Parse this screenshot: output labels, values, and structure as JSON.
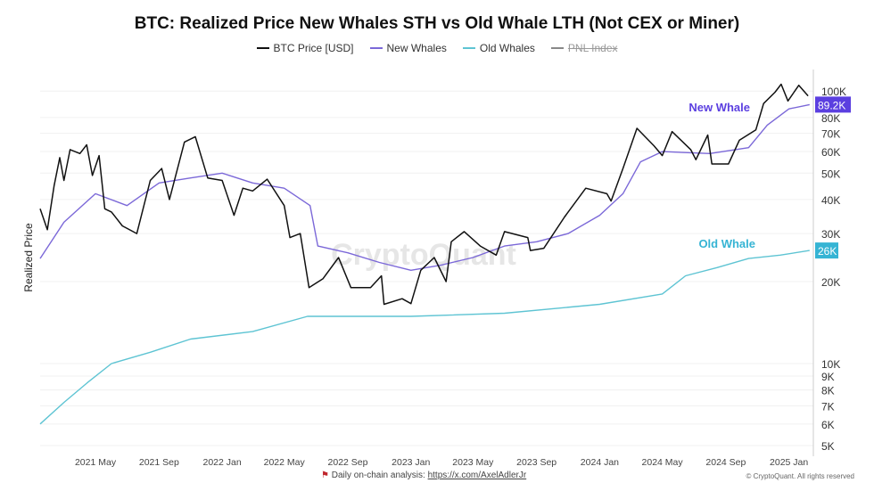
{
  "chart_data": {
    "type": "line",
    "title": "BTC: Realized Price New Whales STH vs Old Whale LTH (Not CEX or Miner)",
    "ylabel": "Realized Price",
    "yscale": "log",
    "ylim": [
      4570,
      120000
    ],
    "xlim": [
      "2021-01-14",
      "2025-02-12"
    ],
    "grid": "horizontal",
    "legend_position": "top",
    "yticks": [
      {
        "v": 100000,
        "l": "100K"
      },
      {
        "v": 80000,
        "l": "80K"
      },
      {
        "v": 70000,
        "l": "70K"
      },
      {
        "v": 60000,
        "l": "60K"
      },
      {
        "v": 50000,
        "l": "50K"
      },
      {
        "v": 40000,
        "l": "40K"
      },
      {
        "v": 30000,
        "l": "30K"
      },
      {
        "v": 20000,
        "l": "20K"
      },
      {
        "v": 10000,
        "l": "10K"
      },
      {
        "v": 9000,
        "l": "9K"
      },
      {
        "v": 8000,
        "l": "8K"
      },
      {
        "v": 7000,
        "l": "7K"
      },
      {
        "v": 6000,
        "l": "6K"
      },
      {
        "v": 5000,
        "l": "5K"
      }
    ],
    "xticks": [
      {
        "d": "2021-05-01",
        "l": "2021 May"
      },
      {
        "d": "2021-09-01",
        "l": "2021 Sep"
      },
      {
        "d": "2022-01-01",
        "l": "2022 Jan"
      },
      {
        "d": "2022-05-01",
        "l": "2022 May"
      },
      {
        "d": "2022-09-01",
        "l": "2022 Sep"
      },
      {
        "d": "2023-01-01",
        "l": "2023 Jan"
      },
      {
        "d": "2023-05-01",
        "l": "2023 May"
      },
      {
        "d": "2023-09-01",
        "l": "2023 Sep"
      },
      {
        "d": "2024-01-01",
        "l": "2024 Jan"
      },
      {
        "d": "2024-05-01",
        "l": "2024 May"
      },
      {
        "d": "2024-09-01",
        "l": "2024 Sep"
      },
      {
        "d": "2025-01-01",
        "l": "2025 Jan"
      }
    ],
    "series": [
      {
        "name": "BTC Price [USD]",
        "color": "#111111",
        "points": [
          [
            "2021-01-14",
            37000
          ],
          [
            "2021-01-28",
            31000
          ],
          [
            "2021-02-10",
            45000
          ],
          [
            "2021-02-21",
            57000
          ],
          [
            "2021-03-01",
            47000
          ],
          [
            "2021-03-13",
            61000
          ],
          [
            "2021-04-01",
            59000
          ],
          [
            "2021-04-14",
            63500
          ],
          [
            "2021-04-25",
            49000
          ],
          [
            "2021-05-08",
            58000
          ],
          [
            "2021-05-19",
            37000
          ],
          [
            "2021-06-01",
            36000
          ],
          [
            "2021-06-22",
            32000
          ],
          [
            "2021-07-20",
            30000
          ],
          [
            "2021-08-15",
            47000
          ],
          [
            "2021-09-06",
            52000
          ],
          [
            "2021-09-21",
            40000
          ],
          [
            "2021-10-20",
            65000
          ],
          [
            "2021-11-10",
            68000
          ],
          [
            "2021-12-04",
            48000
          ],
          [
            "2022-01-01",
            47000
          ],
          [
            "2022-01-24",
            35000
          ],
          [
            "2022-02-10",
            44000
          ],
          [
            "2022-03-01",
            43000
          ],
          [
            "2022-03-29",
            47500
          ],
          [
            "2022-05-01",
            38000
          ],
          [
            "2022-05-12",
            29000
          ],
          [
            "2022-06-01",
            30000
          ],
          [
            "2022-06-18",
            19000
          ],
          [
            "2022-07-15",
            20500
          ],
          [
            "2022-08-14",
            24500
          ],
          [
            "2022-09-07",
            19000
          ],
          [
            "2022-10-15",
            19000
          ],
          [
            "2022-11-05",
            21000
          ],
          [
            "2022-11-10",
            16500
          ],
          [
            "2022-12-15",
            17300
          ],
          [
            "2023-01-01",
            16600
          ],
          [
            "2023-01-20",
            22000
          ],
          [
            "2023-02-15",
            24500
          ],
          [
            "2023-03-10",
            20000
          ],
          [
            "2023-03-20",
            28000
          ],
          [
            "2023-04-14",
            30500
          ],
          [
            "2023-05-15",
            27000
          ],
          [
            "2023-06-15",
            25000
          ],
          [
            "2023-07-01",
            30500
          ],
          [
            "2023-08-15",
            29000
          ],
          [
            "2023-08-20",
            26000
          ],
          [
            "2023-09-15",
            26500
          ],
          [
            "2023-10-25",
            34500
          ],
          [
            "2023-12-05",
            44000
          ],
          [
            "2024-01-15",
            42000
          ],
          [
            "2024-01-23",
            39500
          ],
          [
            "2024-02-15",
            52000
          ],
          [
            "2024-03-13",
            73000
          ],
          [
            "2024-04-15",
            63000
          ],
          [
            "2024-05-01",
            58000
          ],
          [
            "2024-05-20",
            71000
          ],
          [
            "2024-06-25",
            61000
          ],
          [
            "2024-07-05",
            56000
          ],
          [
            "2024-07-28",
            69000
          ],
          [
            "2024-08-05",
            54000
          ],
          [
            "2024-09-06",
            54000
          ],
          [
            "2024-09-27",
            66000
          ],
          [
            "2024-10-29",
            72000
          ],
          [
            "2024-11-13",
            90000
          ],
          [
            "2024-12-05",
            99000
          ],
          [
            "2024-12-17",
            106000
          ],
          [
            "2024-12-30",
            92000
          ],
          [
            "2025-01-20",
            105000
          ],
          [
            "2025-02-07",
            96000
          ]
        ]
      },
      {
        "name": "New Whales",
        "color": "#7b68d8",
        "points": [
          [
            "2021-01-14",
            24300
          ],
          [
            "2021-03-01",
            33000
          ],
          [
            "2021-05-01",
            42000
          ],
          [
            "2021-07-01",
            38000
          ],
          [
            "2021-09-01",
            46000
          ],
          [
            "2021-11-01",
            48000
          ],
          [
            "2022-01-01",
            50000
          ],
          [
            "2022-03-01",
            46000
          ],
          [
            "2022-05-01",
            44000
          ],
          [
            "2022-06-20",
            38000
          ],
          [
            "2022-07-05",
            27000
          ],
          [
            "2022-09-01",
            25500
          ],
          [
            "2022-11-01",
            23500
          ],
          [
            "2023-01-01",
            22000
          ],
          [
            "2023-03-01",
            23000
          ],
          [
            "2023-05-01",
            24500
          ],
          [
            "2023-07-01",
            27000
          ],
          [
            "2023-09-01",
            28000
          ],
          [
            "2023-11-01",
            30000
          ],
          [
            "2024-01-01",
            35000
          ],
          [
            "2024-02-15",
            42000
          ],
          [
            "2024-03-20",
            55000
          ],
          [
            "2024-05-01",
            60000
          ],
          [
            "2024-08-01",
            59000
          ],
          [
            "2024-10-15",
            62000
          ],
          [
            "2024-11-20",
            75000
          ],
          [
            "2025-01-01",
            86000
          ],
          [
            "2025-02-10",
            89200
          ]
        ]
      },
      {
        "name": "Old Whales",
        "color": "#5ec4d3",
        "points": [
          [
            "2021-01-14",
            6000
          ],
          [
            "2021-03-01",
            7200
          ],
          [
            "2021-04-15",
            8500
          ],
          [
            "2021-06-01",
            10000
          ],
          [
            "2021-08-15",
            11000
          ],
          [
            "2021-11-01",
            12300
          ],
          [
            "2022-03-01",
            13100
          ],
          [
            "2022-06-15",
            14900
          ],
          [
            "2023-01-01",
            14900
          ],
          [
            "2023-07-01",
            15300
          ],
          [
            "2024-01-01",
            16500
          ],
          [
            "2024-05-01",
            18000
          ],
          [
            "2024-06-15",
            21000
          ],
          [
            "2024-08-15",
            22500
          ],
          [
            "2024-10-15",
            24300
          ],
          [
            "2024-12-15",
            25000
          ],
          [
            "2025-02-10",
            26000
          ]
        ]
      }
    ],
    "end_labels": [
      {
        "text": "89.2K",
        "value": 89200,
        "color": "#5b3fe0"
      },
      {
        "text": "26K",
        "value": 26000,
        "color": "#36b4d4"
      }
    ],
    "annotations": [
      {
        "text": "New Whale",
        "color": "#5b3fe0"
      },
      {
        "text": "Old Whale",
        "color": "#36b4d4"
      }
    ]
  },
  "legend": [
    {
      "label": "BTC Price [USD]",
      "color": "#111111"
    },
    {
      "label": "New Whales",
      "color": "#7b68d8"
    },
    {
      "label": "Old Whales",
      "color": "#5ec4d3"
    },
    {
      "label": "PNL Index",
      "color": "#888888"
    }
  ],
  "watermark": "CryptoQuant",
  "footer": {
    "text": "Daily on-chain analysis: ",
    "link": "https://x.com/AxelAdlerJr",
    "copyright": "© CryptoQuant. All rights reserved"
  }
}
